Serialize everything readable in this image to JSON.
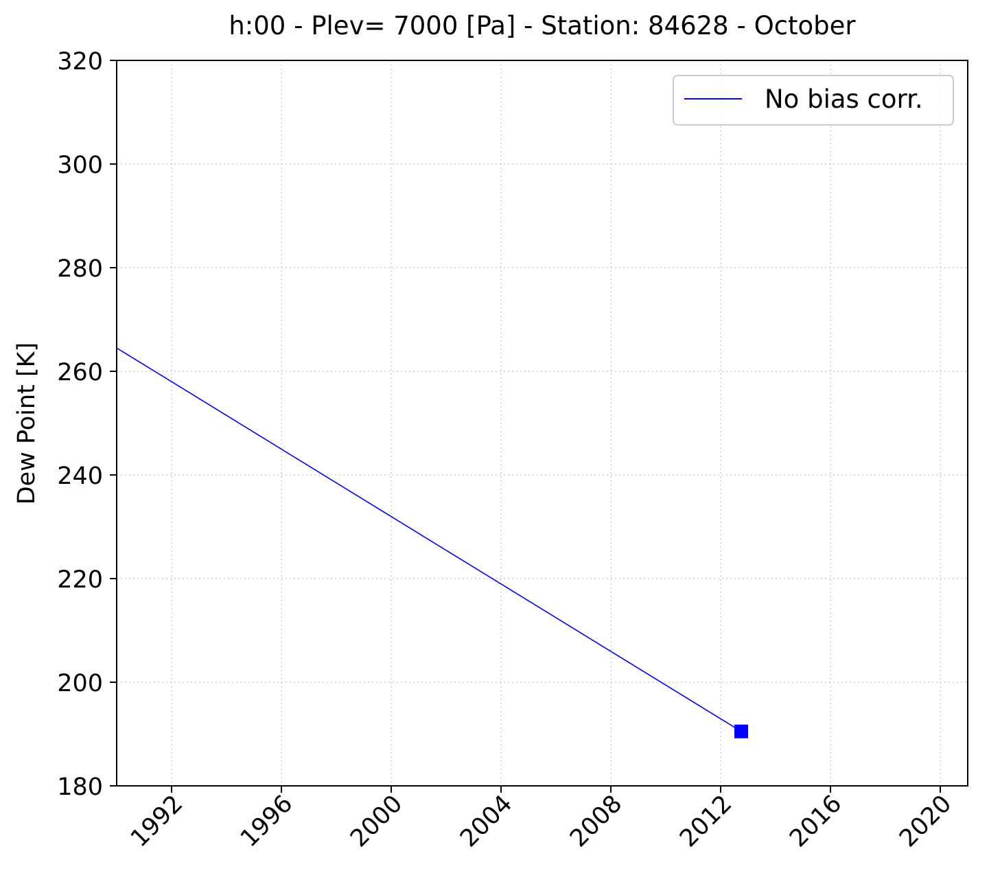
{
  "chart_data": {
    "type": "line",
    "title": "h:00 - Plev= 7000 [Pa] - Station: 84628 - October",
    "xlabel": "",
    "ylabel": "Dew Point [K]",
    "xlim": [
      1990,
      2021
    ],
    "ylim": [
      180,
      320
    ],
    "x_ticks": [
      "1992",
      "1996",
      "2000",
      "2004",
      "2008",
      "2012",
      "2016",
      "2020"
    ],
    "y_ticks": [
      "180",
      "200",
      "220",
      "240",
      "260",
      "280",
      "300",
      "320"
    ],
    "grid": true,
    "legend_position": "top-right",
    "series": [
      {
        "name": "No bias corr.",
        "color": "#0000ff",
        "x": [
          1990.0,
          2012.75
        ],
        "y": [
          264.5,
          190.5
        ],
        "marker": {
          "x": 2012.75,
          "y": 190.5,
          "shape": "square"
        }
      }
    ]
  }
}
